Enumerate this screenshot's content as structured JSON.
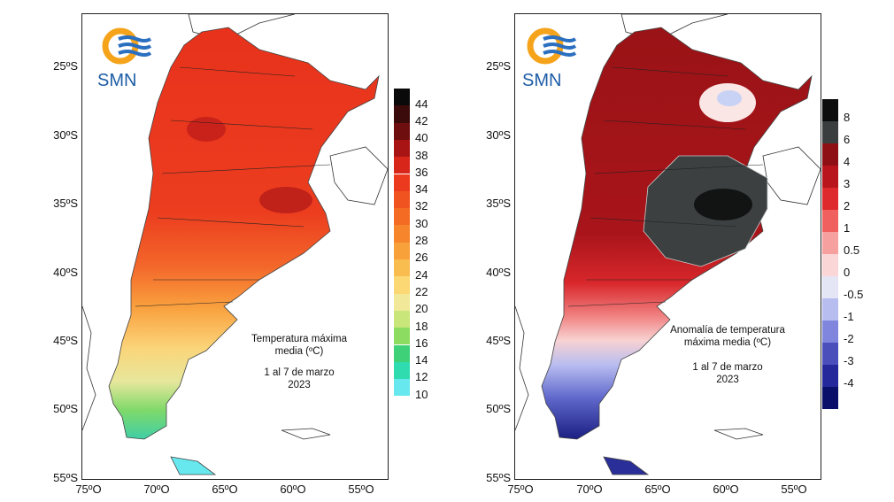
{
  "logo": {
    "text": "SMN"
  },
  "axes": {
    "lat_labels": [
      "25ºS",
      "30ºS",
      "35ºS",
      "40ºS",
      "45ºS",
      "50ºS",
      "55ºS"
    ],
    "lon_labels": [
      "75ºO",
      "70ºO",
      "65ºO",
      "60ºO",
      "55ºO"
    ]
  },
  "left_map": {
    "title_line1": "Temperatura máxima",
    "title_line2": "media (ºC)",
    "period": "1 al 7 de marzo",
    "year": "2023",
    "colorbar_labels": [
      "44",
      "42",
      "40",
      "38",
      "36",
      "34",
      "32",
      "30",
      "28",
      "26",
      "24",
      "22",
      "20",
      "18",
      "16",
      "14",
      "12",
      "10"
    ],
    "colorbar_colors": [
      "#0a0a0a",
      "#3b0a0a",
      "#6e0e0e",
      "#a81414",
      "#d8261a",
      "#ec3a1f",
      "#f0531f",
      "#f46b24",
      "#f6852c",
      "#f8a03a",
      "#f9bc4f",
      "#fbd873",
      "#f2e89a",
      "#c8e67a",
      "#8bdc60",
      "#3fd178",
      "#2fdcb0",
      "#66e8ee"
    ]
  },
  "right_map": {
    "title_line1": "Anomalía de temperatura",
    "title_line2": "máxima media (ºC)",
    "period": "1 al 7 de marzo",
    "year": "2023",
    "colorbar_labels": [
      "8",
      "6",
      "4",
      "3",
      "2",
      "1",
      "0.5",
      "0",
      "-0.5",
      "-1",
      "-2",
      "-3",
      "-4"
    ],
    "colorbar_colors": [
      "#0c0c0c",
      "#3a3e3e",
      "#8e0f14",
      "#b8161c",
      "#de2a2c",
      "#f0605e",
      "#f6a0a0",
      "#fbd6d6",
      "#e4e6f6",
      "#b8bdf0",
      "#8086de",
      "#4a4fbc",
      "#24289a",
      "#0a0f6a"
    ]
  }
}
